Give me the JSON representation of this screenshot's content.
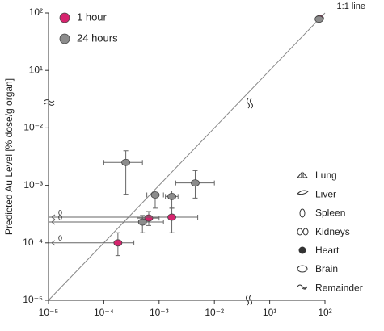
{
  "chart_data": {
    "type": "scatter",
    "y_label": "Predicted Au Level [% dose/g organ]",
    "identity_line_label": "1:1 line",
    "log_scale": true,
    "axis_break": [
      0.01,
      10
    ],
    "xlim": [
      1e-05,
      100
    ],
    "ylim": [
      1e-05,
      100
    ],
    "xticks": [
      {
        "value": 1e-05,
        "label": "10⁻⁵"
      },
      {
        "value": 0.0001,
        "label": "10⁻⁴"
      },
      {
        "value": 0.001,
        "label": "10⁻³"
      },
      {
        "value": 0.01,
        "label": "10⁻²"
      },
      {
        "value": 10,
        "label": "10¹"
      },
      {
        "value": 100,
        "label": "10²"
      }
    ],
    "yticks": [
      {
        "value": 1e-05,
        "label": "10⁻⁵"
      },
      {
        "value": 0.0001,
        "label": "10⁻⁴"
      },
      {
        "value": 0.001,
        "label": "10⁻³"
      },
      {
        "value": 0.01,
        "label": "10⁻²"
      },
      {
        "value": 10,
        "label": "10¹"
      },
      {
        "value": 100,
        "label": "10²"
      }
    ],
    "series": [
      {
        "name": "1 hour",
        "color": "#d6246e",
        "x": [
          0.00018,
          0.00065,
          0.0017,
          80
        ],
        "values": [
          0.0001,
          0.00027,
          0.00028,
          80
        ],
        "xerr": [
          [
            0,
            0.00035
          ],
          [
            0.0004,
            0.001
          ],
          [
            0,
            0.005
          ],
          null
        ],
        "yerr": [
          [
            6e-05,
            0.00015
          ],
          [
            0.0002,
            0.00035
          ],
          [
            0.00015,
            0.0004
          ],
          null
        ]
      },
      {
        "name": "24 hours",
        "color": "#8c8c8c",
        "x": [
          0.00025,
          0.00085,
          0.0017,
          0.0045,
          0.0005,
          78
        ],
        "values": [
          0.0025,
          0.00068,
          0.00064,
          0.0011,
          0.00023,
          78
        ],
        "xerr": [
          [
            0.0001,
            0.0005
          ],
          [
            0.0006,
            0.0012
          ],
          [
            0.0013,
            0.0022
          ],
          [
            0.002,
            0.01
          ],
          [
            0,
            0.0012
          ],
          null
        ],
        "yerr": [
          [
            0.0007,
            0.004
          ],
          [
            0.0004,
            0.0008
          ],
          [
            0.0004,
            0.0008
          ],
          [
            0.0006,
            0.0018
          ],
          [
            0.00015,
            0.0003
          ],
          null
        ]
      }
    ],
    "organ_legend": [
      "Lung",
      "Liver",
      "Spleen",
      "Kidneys",
      "Heart",
      "Brain",
      "Remainder"
    ]
  }
}
